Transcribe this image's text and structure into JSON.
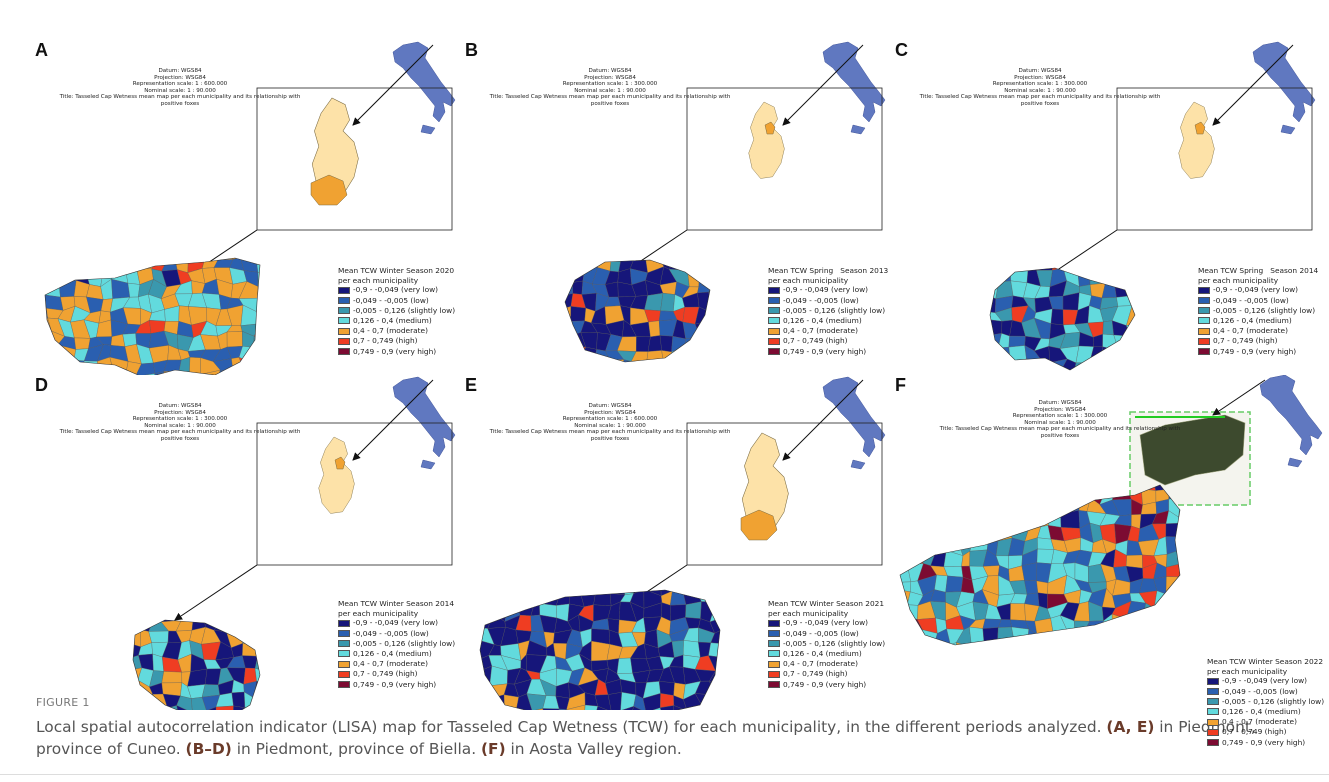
{
  "panels": [
    {
      "label": "A",
      "metadata": [
        "Datum: WGS84",
        "Projection: WSG84",
        "Representation scale: 1 : 600.000",
        "Nominal scale: 1 : 90.000",
        "Title: Tasseled Cap Wetness mean map per each municipality and its relationship with positive foxes"
      ],
      "legend_title": [
        "Mean TCW Winter Season 2020",
        "per each municipality"
      ]
    },
    {
      "label": "B",
      "metadata": [
        "Datum: WGS84",
        "Projection: WSG84",
        "Representation scale: 1 : 300.000",
        "Nominal scale: 1 : 90.000",
        "Title: Tasseled Cap Wetness mean map per each municipality and its relationship with positive foxes"
      ],
      "legend_title": [
        "Mean TCW Spring   Season 2013",
        "per each municipality"
      ]
    },
    {
      "label": "C",
      "metadata": [
        "Datum: WGS84",
        "Projection: WSG84",
        "Representation scale: 1 : 300.000",
        "Nominal scale: 1 : 90.000",
        "Title: Tasseled Cap Wetness mean map per each municipality and its relationship with positive foxes"
      ],
      "legend_title": [
        "Mean TCW Spring   Season 2014",
        "per each municipality"
      ]
    },
    {
      "label": "D",
      "metadata": [
        "Datum: WGS84",
        "Projection: WSG84",
        "Representation scale: 1 : 300.000",
        "Nominal scale: 1 : 90.000",
        "Title: Tasseled Cap Wetness mean map per each municipality and its relationship with positive foxes"
      ],
      "legend_title": [
        "Mean TCW Winter Season 2014",
        "per each municipality"
      ]
    },
    {
      "label": "E",
      "metadata": [
        "Datum: WGS84",
        "Projection: WSG84",
        "Representation scale: 1 : 600.000",
        "Nominal scale: 1 : 90.000",
        "Title: Tasseled Cap Wetness mean map per each municipality and its relationship with positive foxes"
      ],
      "legend_title": [
        "Mean TCW Winter Season 2021",
        "per each municipality"
      ]
    },
    {
      "label": "F",
      "metadata": [
        "Datum: WGS84",
        "Projection: WSG84",
        "Representation scale: 1 : 300.000",
        "Nominal scale: 1 : 90.000",
        "Title: Tasseled Cap Wetness mean map per each municipality and its relationship with positive foxes"
      ],
      "legend_title": [
        "Mean TCW Winter Season 2022",
        "per each municipality"
      ]
    }
  ],
  "legend_items": [
    {
      "label": "-0,9 - -0,049 (very low)",
      "color": "#16167a"
    },
    {
      "label": "-0,049 - -0,005 (low)",
      "color": "#2a5fb0"
    },
    {
      "label": "-0,005 - 0,126 (slightly low)",
      "color": "#3a98ae"
    },
    {
      "label": "0,126 - 0,4 (medium)",
      "color": "#62dadd"
    },
    {
      "label": "0,4 - 0,7 (moderate)",
      "color": "#f0a232"
    },
    {
      "label": "0,7 - 0,749 (high)",
      "color": "#ef3d22"
    },
    {
      "label": "0,749 - 0,9 (very high)",
      "color": "#7c0b32"
    }
  ],
  "caption": {
    "label": "FIGURE 1",
    "parts": [
      "Local spatial autocorrelation indicator (LISA) map for Tasseled Cap Wetness (TCW) for each municipality, in the different periods analyzed. ",
      "(A, E)",
      " in Piedmont, province of Cuneo. ",
      "(B–D)",
      " in Piedmont, province of Biella. ",
      "(F)",
      " in Aosta Valley region."
    ]
  }
}
